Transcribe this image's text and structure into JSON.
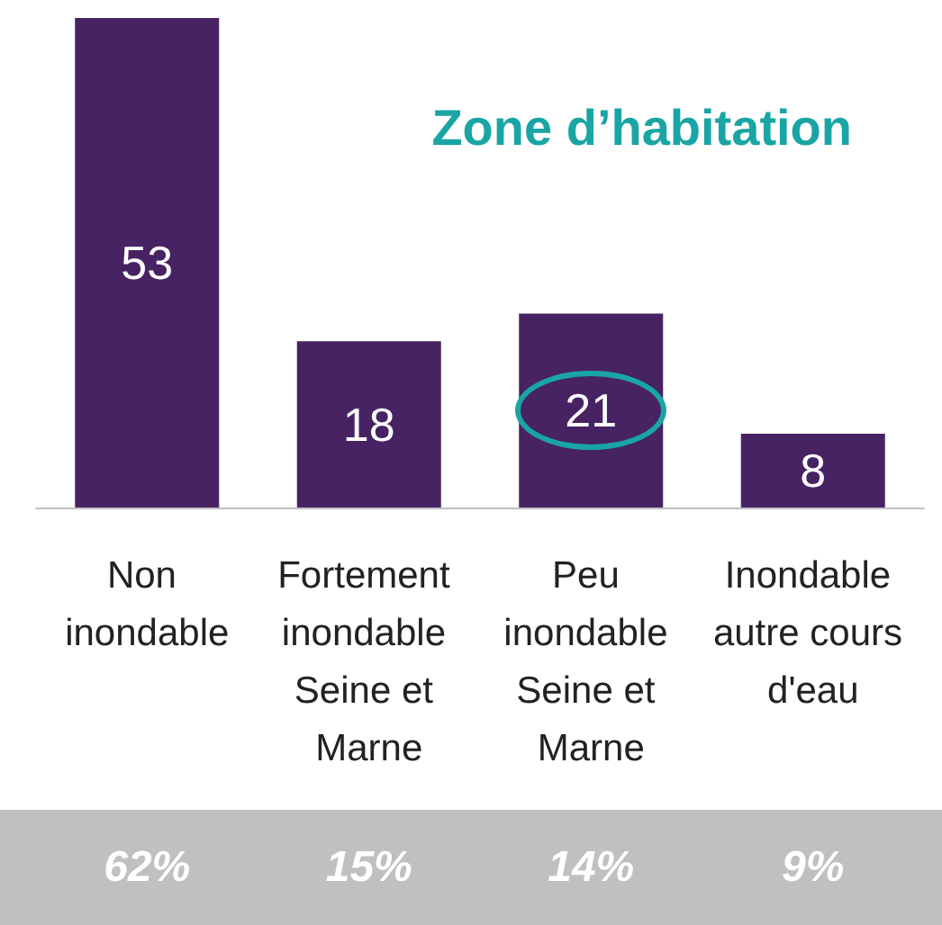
{
  "chart_data": {
    "type": "bar",
    "title": "Zone d’habitation",
    "categories": [
      "Non inondable",
      "Fortement inondable Seine et Marne",
      "Peu inondable Seine et Marne",
      "Inondable autre cours d'eau"
    ],
    "values": [
      53,
      18,
      21,
      8
    ],
    "color": "#472363",
    "data_labels": true,
    "annotations": [
      "62%",
      "15%",
      "14%",
      "9%"
    ]
  }
}
